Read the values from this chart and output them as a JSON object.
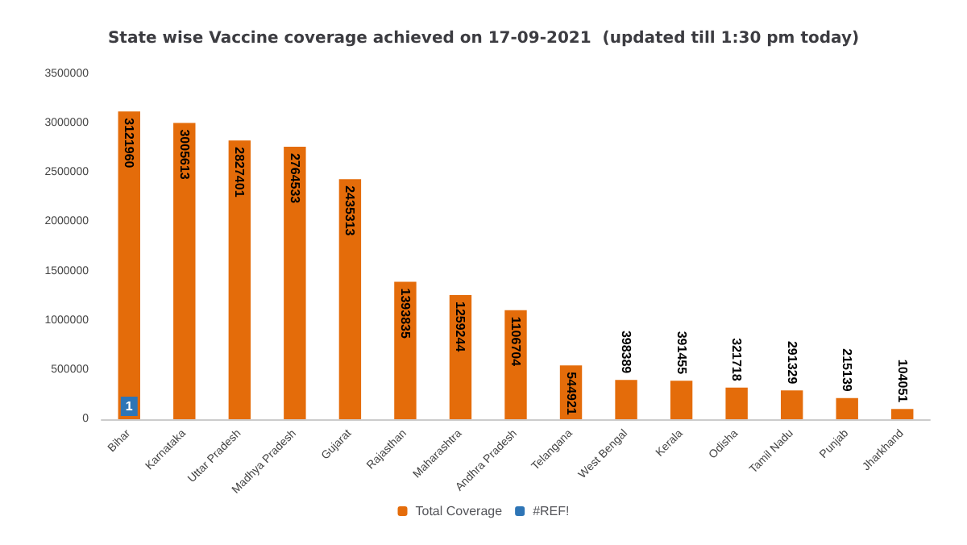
{
  "chart_data": {
    "type": "bar",
    "title": "State wise Vaccine coverage achieved on 17-09-2021  (updated till 1:30 pm today)",
    "categories": [
      "Bihar",
      "Karnataka",
      "Uttar Pradesh",
      "Madhya Pradesh",
      "Gujarat",
      "Rajasthan",
      "Maharashtra",
      "Andhra Pradesh",
      "Telangana",
      "West Bengal",
      "Kerala",
      "Odisha",
      "Tamil Nadu",
      "Punjab",
      "Jharkhand"
    ],
    "series": [
      {
        "name": "Total Coverage",
        "color": "#e46c0a",
        "values": [
          3121960,
          3005613,
          2827401,
          2764533,
          2435313,
          1393835,
          1259244,
          1106704,
          544921,
          398389,
          391455,
          321718,
          291329,
          215139,
          104051
        ]
      },
      {
        "name": "#REF!",
        "color": "#2e75b6",
        "values": [
          1,
          null,
          null,
          null,
          null,
          null,
          null,
          null,
          null,
          null,
          null,
          null,
          null,
          null,
          null
        ]
      }
    ],
    "ylim": [
      0,
      3500000
    ],
    "yticks": [
      0,
      500000,
      1000000,
      1500000,
      2000000,
      2500000,
      3000000,
      3500000
    ],
    "data_labels": true,
    "grid": false,
    "legend": "bottom"
  }
}
